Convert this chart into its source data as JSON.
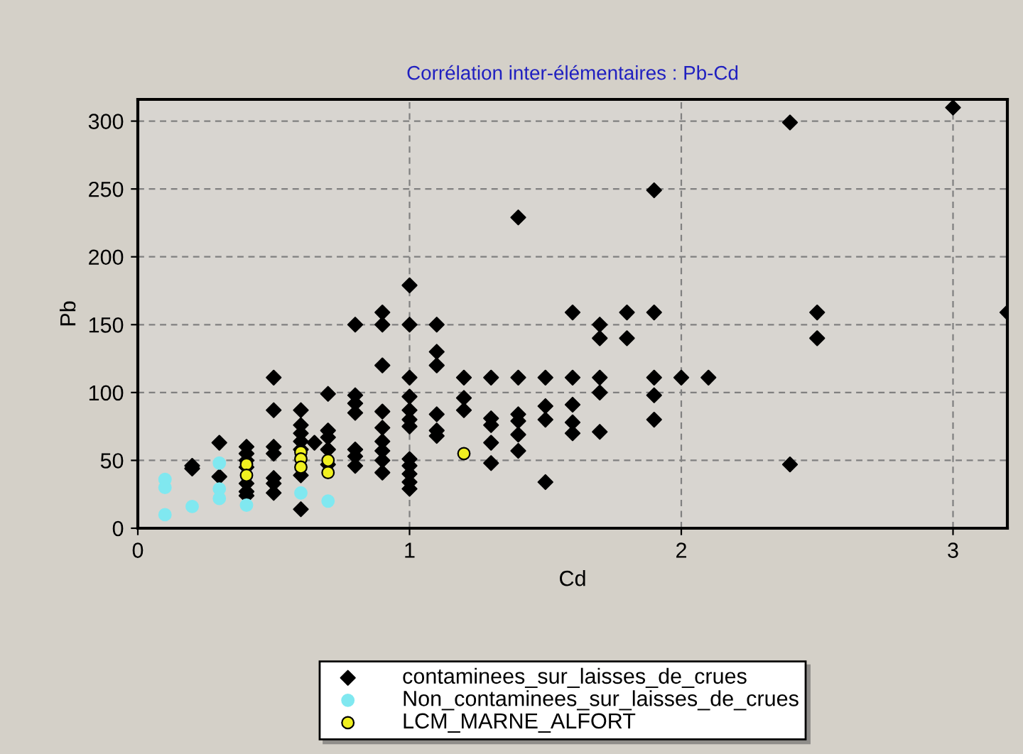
{
  "chart_data": {
    "type": "scatter",
    "title": "Corrélation inter-élémentaires : Pb-Cd",
    "xlabel": "Cd",
    "ylabel": "Pb",
    "xlim": [
      0,
      3.2
    ],
    "xticks": [
      0,
      1,
      2,
      3
    ],
    "ylim": [
      0,
      316
    ],
    "yticks": [
      0,
      50,
      100,
      150,
      200,
      250,
      300
    ],
    "grid": true,
    "legend": "bottom",
    "series": [
      {
        "name": "contaminees_sur_laisses_de_crues",
        "color": "#000000",
        "marker": "diamond",
        "x": [
          0.2,
          0.2,
          0.3,
          0.3,
          0.4,
          0.4,
          0.4,
          0.4,
          0.4,
          0.4,
          0.4,
          0.5,
          0.5,
          0.5,
          0.5,
          0.5,
          0.5,
          0.5,
          0.6,
          0.6,
          0.6,
          0.6,
          0.6,
          0.6,
          0.6,
          0.65,
          0.7,
          0.7,
          0.7,
          0.7,
          0.7,
          0.8,
          0.8,
          0.8,
          0.8,
          0.8,
          0.8,
          0.8,
          0.9,
          0.9,
          0.9,
          0.9,
          0.9,
          0.9,
          0.9,
          0.9,
          0.9,
          1.0,
          1.0,
          1.0,
          1.0,
          1.0,
          1.0,
          1.0,
          1.0,
          1.0,
          1.0,
          1.0,
          1.0,
          1.1,
          1.1,
          1.1,
          1.1,
          1.1,
          1.1,
          1.2,
          1.2,
          1.2,
          1.3,
          1.3,
          1.3,
          1.3,
          1.3,
          1.4,
          1.4,
          1.4,
          1.4,
          1.4,
          1.4,
          1.5,
          1.5,
          1.5,
          1.5,
          1.6,
          1.6,
          1.6,
          1.6,
          1.6,
          1.7,
          1.7,
          1.7,
          1.7,
          1.7,
          1.8,
          1.8,
          1.9,
          1.9,
          1.9,
          1.9,
          1.9,
          2.0,
          2.1,
          2.4,
          2.4,
          2.5,
          2.5,
          3.0,
          3.2
        ],
        "values": [
          46,
          44,
          63,
          38,
          60,
          55,
          50,
          45,
          33,
          27,
          24,
          111,
          87,
          60,
          55,
          37,
          33,
          26,
          87,
          76,
          70,
          64,
          58,
          39,
          14,
          63,
          99,
          72,
          67,
          58,
          47,
          150,
          98,
          92,
          85,
          58,
          53,
          46,
          159,
          150,
          120,
          86,
          74,
          64,
          57,
          50,
          41,
          179,
          150,
          111,
          97,
          87,
          80,
          75,
          51,
          46,
          40,
          34,
          29,
          150,
          130,
          120,
          84,
          72,
          68,
          111,
          96,
          87,
          111,
          81,
          76,
          63,
          48,
          229,
          111,
          84,
          79,
          69,
          57,
          111,
          90,
          80,
          34,
          159,
          111,
          91,
          78,
          70,
          150,
          140,
          111,
          100,
          71,
          159,
          140,
          249,
          159,
          111,
          98,
          80,
          111,
          111,
          299,
          47,
          159,
          140,
          310,
          159
        ]
      },
      {
        "name": "Non_contaminees_sur_laisses_de_crues",
        "color": "#80e8f0",
        "marker": "circle",
        "x": [
          0.1,
          0.1,
          0.1,
          0.2,
          0.3,
          0.3,
          0.3,
          0.4,
          0.6,
          0.7
        ],
        "values": [
          36,
          30,
          10,
          16,
          48,
          29,
          22,
          17,
          26,
          20
        ]
      },
      {
        "name": "LCM_MARNE_ALFORT",
        "color": "#f0f020",
        "marker": "circle",
        "x": [
          0.4,
          0.4,
          0.6,
          0.6,
          0.6,
          0.7,
          0.7,
          1.2
        ],
        "values": [
          47,
          39,
          56,
          51,
          45,
          50,
          41,
          55
        ]
      }
    ]
  }
}
